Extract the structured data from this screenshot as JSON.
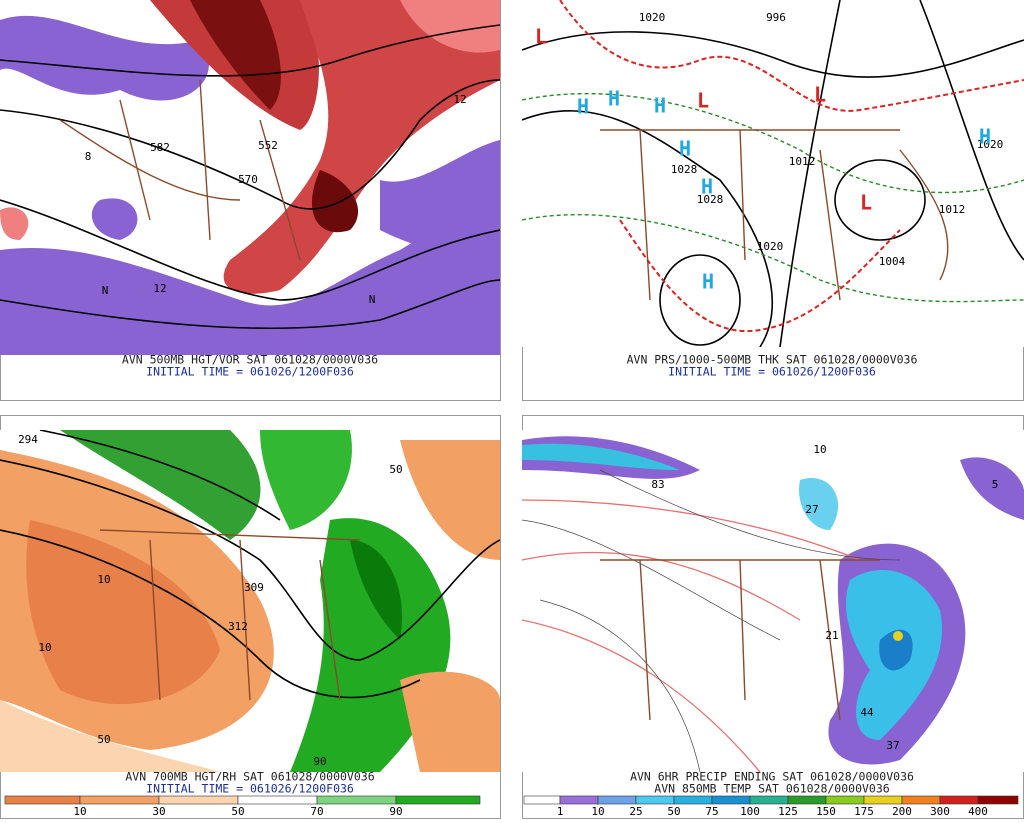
{
  "panels": [
    {
      "caption": [
        "AVN 500MB HGT/VOR SAT 061028/0000V036",
        "INITIAL TIME = 061026/1200F036"
      ],
      "labels": [
        "582",
        "570",
        "552",
        "8",
        "12",
        "N",
        "N",
        "12"
      ]
    },
    {
      "caption": [
        "AVN PRS/1000-500MB THK SAT 061028/0000V036",
        "INITIAL TIME = 061026/1200F036"
      ],
      "labels": [
        "1020",
        "996",
        "1012",
        "1028",
        "1028",
        "1020",
        "1004",
        "1012",
        "1020",
        "L",
        "L",
        "L",
        "H",
        "H",
        "H",
        "H",
        "H",
        "H",
        "H",
        "L"
      ]
    },
    {
      "caption": [
        "AVN 700MB HGT/RH SAT 061028/0000V036",
        "INITIAL TIME = 061026/1200F036"
      ],
      "labels": [
        "294",
        "312",
        "50",
        "10",
        "90",
        "10",
        "50",
        "309"
      ]
    },
    {
      "caption": [
        "AVN 6HR PRECIP ENDING SAT 061028/0000V036",
        "AVN 850MB TEMP SAT 061028/0000V036"
      ],
      "labels": [
        "27",
        "44",
        "37",
        "83",
        "21",
        "10",
        "5"
      ]
    }
  ],
  "colorbars": [
    {
      "ticks": [
        10,
        30,
        50,
        70,
        90
      ]
    },
    {
      "ticks": [
        1,
        10,
        25,
        50,
        75,
        100,
        125,
        150,
        175,
        200,
        300,
        400
      ]
    }
  ]
}
